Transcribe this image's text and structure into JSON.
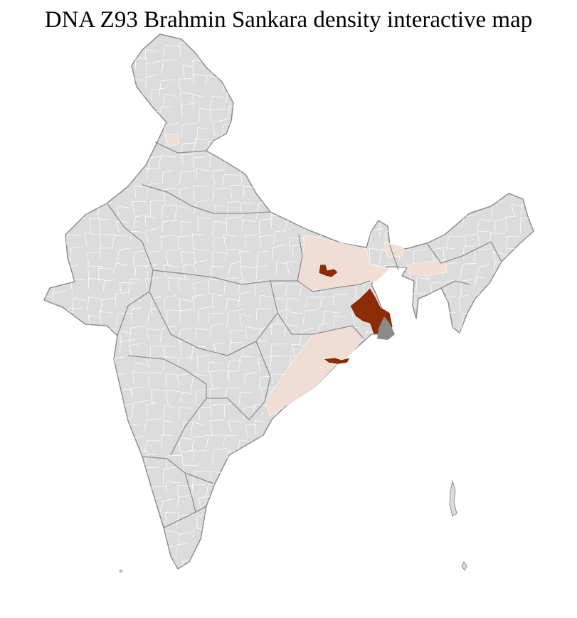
{
  "title": "DNA Z93 Brahmin Sankara density interactive map",
  "colors": {
    "background": "#ffffff",
    "land": "#dcdcdc",
    "state_border": "#8f8f8f",
    "district_border": "#ffffff",
    "low_density": "#f0ddd4",
    "high_density": "#8c2c06",
    "no_data": "#8a8a8a"
  }
}
